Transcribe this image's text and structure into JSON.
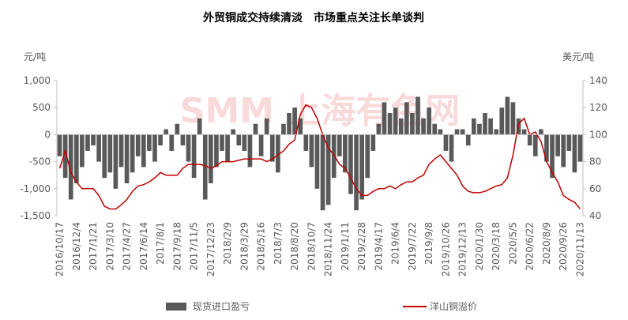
{
  "chart_data": {
    "type": "combo",
    "title": "外贸铜成交持续清淡　市场重点关注长单谈判",
    "y_label": "元/吨",
    "y2_label": "美元/吨",
    "watermark": "SMM 上海有色网",
    "categories": [
      "2016/10/17",
      null,
      null,
      "2016/12/4",
      null,
      null,
      "2017/1/21",
      null,
      null,
      "2017/3/10",
      null,
      null,
      "2017/4/27",
      null,
      null,
      "2017/6/14",
      null,
      null,
      "2017/8/1",
      null,
      null,
      "2017/9/18",
      null,
      null,
      "2017/11/5",
      null,
      null,
      "2017/12/23",
      null,
      null,
      "2018/2/9",
      null,
      null,
      "2018/3/29",
      null,
      null,
      "2018/5/16",
      null,
      null,
      "2018/7/3",
      null,
      null,
      "2018/8/20",
      null,
      null,
      "2018/10/7",
      null,
      null,
      "2018/11/24",
      null,
      null,
      "2019/1/11",
      null,
      null,
      "2019/2/28",
      null,
      null,
      "2019/4/17",
      null,
      null,
      "2019/6/4",
      null,
      null,
      "2019/7/22",
      null,
      null,
      "2019/9/8",
      null,
      null,
      "2019/10/26",
      null,
      null,
      "2019/12/13",
      null,
      null,
      "2020/1/30",
      null,
      null,
      "2020/3/18",
      null,
      null,
      "2020/5/5",
      null,
      null,
      "2020/6/22",
      null,
      null,
      "2020/8/9",
      null,
      null,
      "2020/9/26",
      null,
      null,
      "2020/11/13"
    ],
    "series": [
      {
        "name": "现货进口盈亏",
        "type": "bar",
        "color": "#595959",
        "values": [
          -400,
          -800,
          -1200,
          -900,
          -600,
          -300,
          -200,
          -500,
          -800,
          -700,
          -1000,
          -600,
          -900,
          -700,
          -400,
          -600,
          -300,
          -500,
          -200,
          100,
          -300,
          200,
          -200,
          -500,
          -800,
          300,
          -1200,
          -900,
          -600,
          -300,
          -500,
          100,
          -200,
          -300,
          -600,
          200,
          -400,
          300,
          -500,
          -700,
          200,
          400,
          500,
          300,
          -300,
          -600,
          -1000,
          -1400,
          -1300,
          -800,
          -400,
          -700,
          -1100,
          -1400,
          -1200,
          -800,
          -300,
          200,
          600,
          400,
          500,
          300,
          600,
          400,
          700,
          300,
          500,
          200,
          100,
          -300,
          -500,
          100,
          100,
          -200,
          300,
          200,
          400,
          300,
          100,
          500,
          700,
          600,
          300,
          100,
          -200,
          -400,
          100,
          -500,
          -800,
          -400,
          -600,
          -300,
          -700,
          -500
        ]
      },
      {
        "name": "洋山铜溢价",
        "type": "line",
        "axis": "y2",
        "color": "#c00000",
        "values": [
          75,
          88,
          72,
          65,
          60,
          60,
          60,
          55,
          47,
          45,
          45,
          48,
          52,
          58,
          62,
          63,
          65,
          68,
          72,
          70,
          70,
          70,
          75,
          78,
          78,
          78,
          77,
          75,
          77,
          80,
          80,
          80,
          81,
          82,
          82,
          82,
          82,
          80,
          82,
          85,
          88,
          93,
          96,
          115,
          122,
          120,
          112,
          100,
          90,
          85,
          78,
          75,
          68,
          60,
          55,
          55,
          58,
          60,
          60,
          62,
          60,
          63,
          65,
          65,
          68,
          70,
          78,
          82,
          85,
          80,
          75,
          70,
          62,
          58,
          57,
          57,
          58,
          60,
          62,
          63,
          68,
          85,
          108,
          112,
          100,
          102,
          95,
          80,
          72,
          65,
          55,
          52,
          50,
          45
        ]
      }
    ],
    "ylim": [
      -1500,
      1000
    ],
    "yticks": [
      {
        "value": -1500,
        "label": "-1,500"
      },
      {
        "value": -1000,
        "label": "-1,000"
      },
      -500,
      0,
      500,
      {
        "value": 1000,
        "label": "1,000"
      }
    ],
    "y2lim": [
      40,
      140
    ],
    "y2ticks": [
      40,
      60,
      80,
      100,
      120,
      140
    ]
  }
}
